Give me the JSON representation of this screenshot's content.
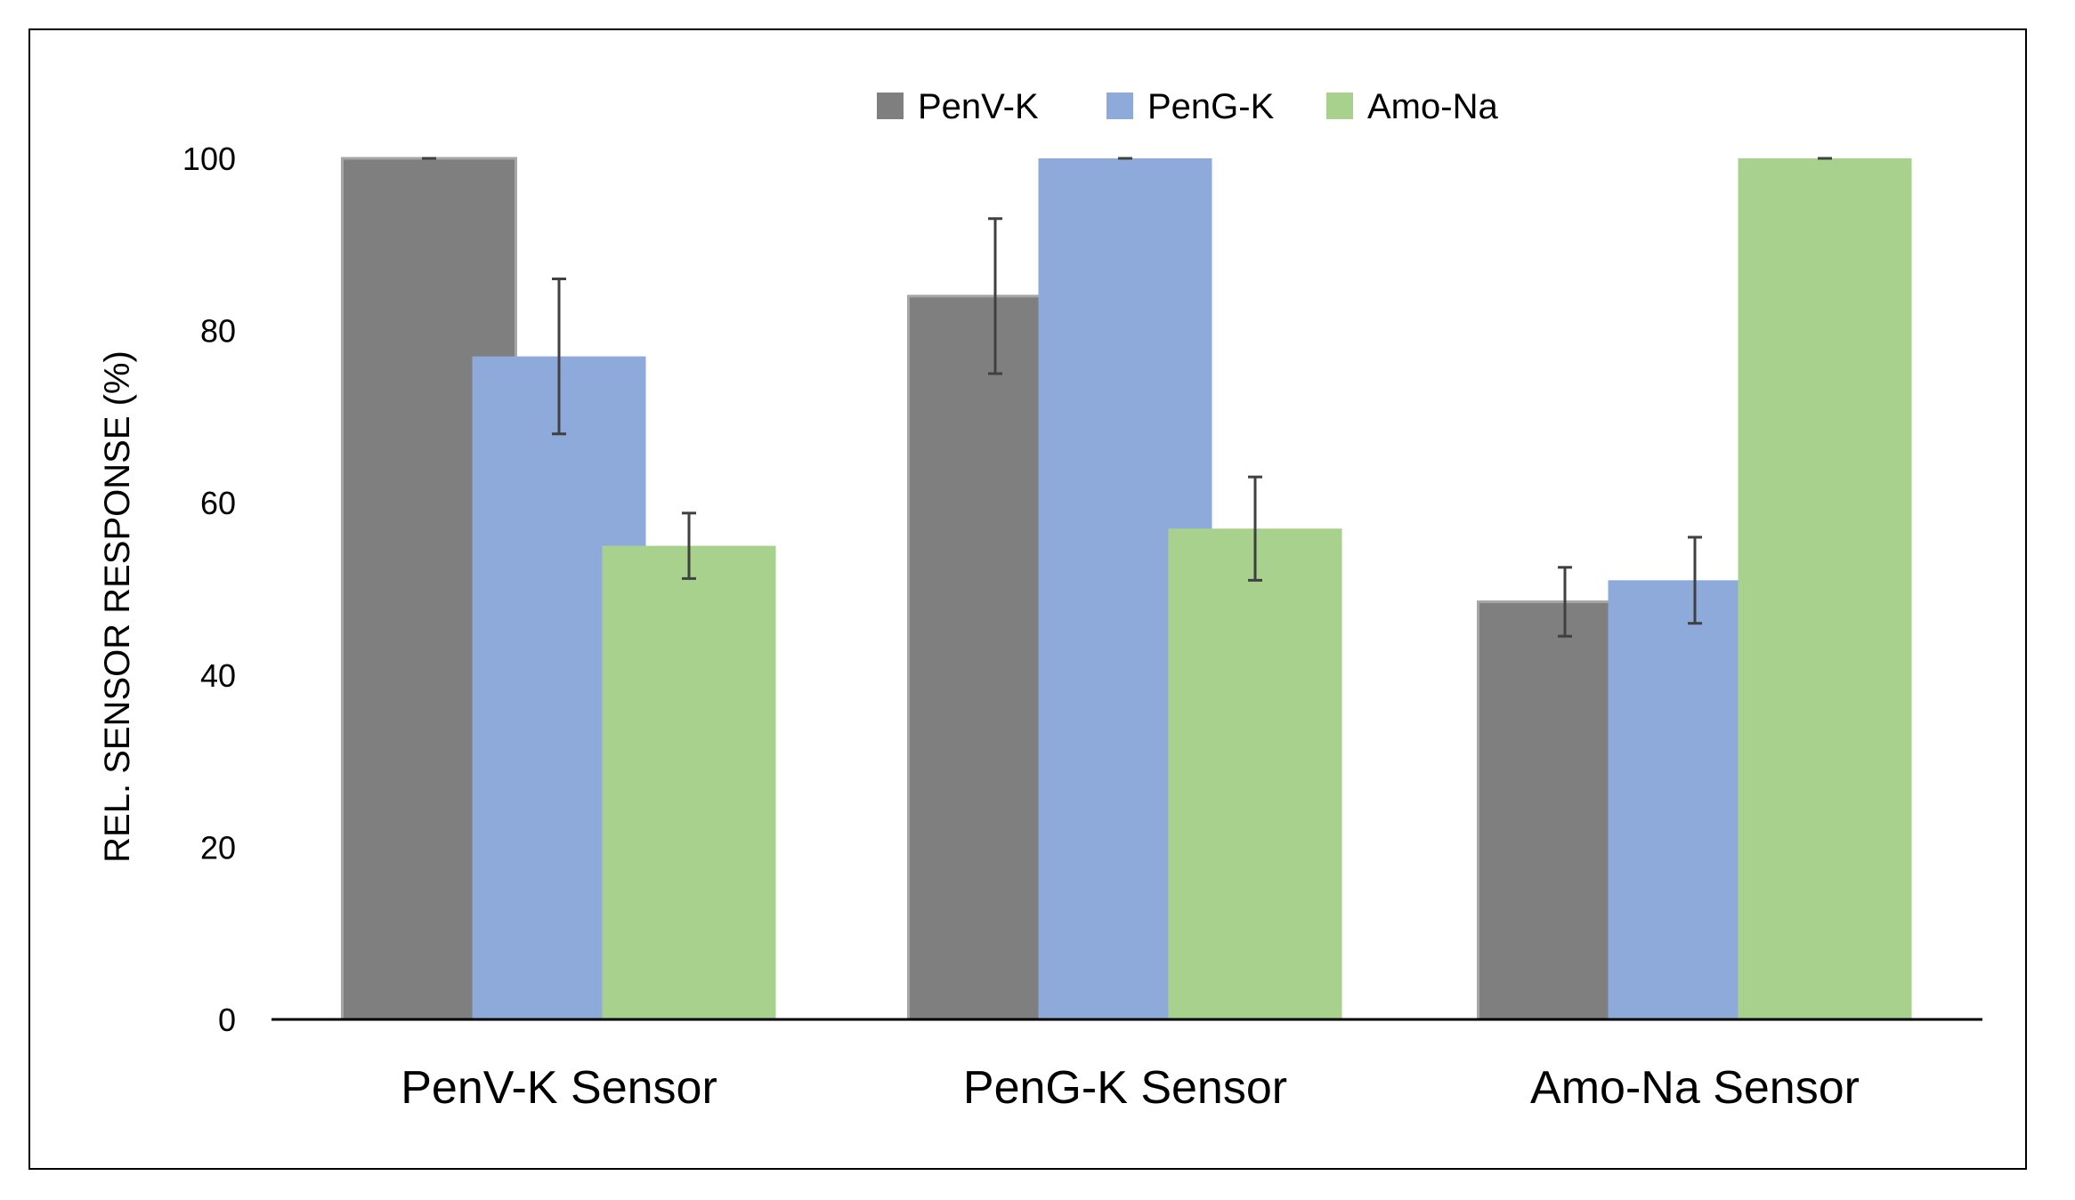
{
  "chart_data": {
    "type": "bar",
    "categories": [
      "PenV-K Sensor",
      "PenG-K Sensor",
      "Amo-Na Sensor"
    ],
    "series": [
      {
        "name": "PenV-K",
        "color": "#7f7f7f",
        "values": [
          100,
          84,
          48.5
        ],
        "errors": [
          0,
          9,
          4
        ]
      },
      {
        "name": "PenG-K",
        "color": "#8eaadb",
        "values": [
          77,
          100,
          51
        ],
        "errors": [
          9,
          0,
          5
        ]
      },
      {
        "name": "Amo-Na",
        "color": "#a9d18e",
        "values": [
          55,
          57,
          100
        ],
        "errors": [
          3.8,
          6,
          0
        ]
      }
    ],
    "title": "",
    "xlabel": "",
    "ylabel": "REL. SENSOR RESPONSE (%)",
    "ylim": [
      0,
      100
    ],
    "yticks": [
      "0",
      "20",
      "40",
      "60",
      "80",
      "100"
    ],
    "grid": false,
    "legend": "top-center"
  }
}
